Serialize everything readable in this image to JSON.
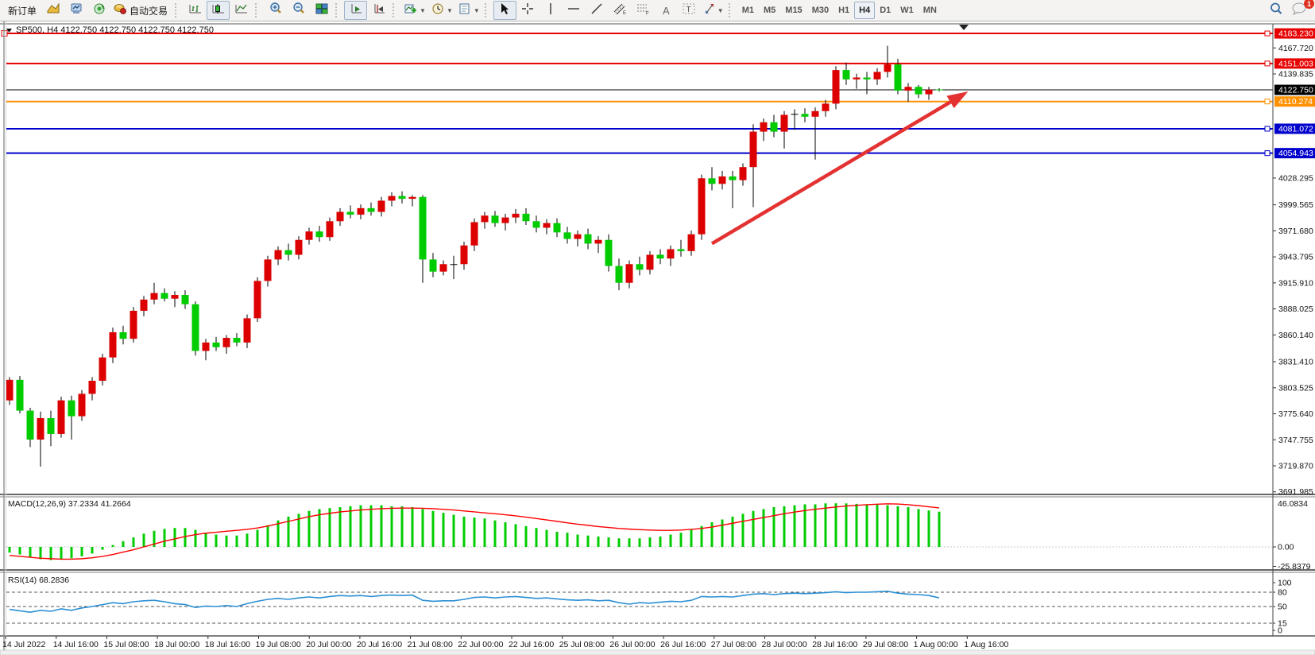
{
  "toolbar": {
    "new_order_label": "新订单",
    "autotrade_label": "自动交易",
    "text_tool_label": "A",
    "label_tool_label": "T",
    "timeframes": [
      "M1",
      "M5",
      "M15",
      "M30",
      "H1",
      "H4",
      "D1",
      "W1",
      "MN"
    ],
    "active_timeframe": "H4",
    "notification_count": "1"
  },
  "chart_data": {
    "type": "candlestick",
    "symbol": "SP500",
    "timeframe": "H4",
    "title": "SP500, H4 4122.750 4122.750 4122.750 4122.750",
    "current_price": "4122.750",
    "price_axis": {
      "visible_min": 3689.2,
      "visible_max": 4193.5,
      "ticks": [
        "4167.720",
        "4139.835",
        "4028.295",
        "3999.565",
        "3971.680",
        "3943.795",
        "3915.910",
        "3888.025",
        "3860.140",
        "3831.410",
        "3803.525",
        "3775.640",
        "3747.755",
        "3719.870",
        "3691.985"
      ]
    },
    "price_lines": [
      {
        "price": 4183.23,
        "label": "4183.230",
        "color": "#e60000",
        "type": "resistance"
      },
      {
        "price": 4151.003,
        "label": "4151.003",
        "color": "#e60000",
        "type": "resistance"
      },
      {
        "price": 4122.75,
        "label": "4122.750",
        "color": "#000000",
        "type": "current-price"
      },
      {
        "price": 4110.274,
        "label": "4110.274",
        "color": "#ff9000",
        "type": "level"
      },
      {
        "price": 4081.072,
        "label": "4081.072",
        "color": "#0000cc",
        "type": "support"
      },
      {
        "price": 4054.943,
        "label": "4054.943",
        "color": "#0000cc",
        "type": "support"
      }
    ],
    "trend_arrow": {
      "from": {
        "index": 68,
        "price": 3958
      },
      "to": {
        "index": 92.8,
        "price": 4121
      },
      "color": "#e43131"
    },
    "time_labels": [
      "14 Jul 2022",
      "14 Jul 16:00",
      "15 Jul 08:00",
      "18 Jul 00:00",
      "18 Jul 16:00",
      "19 Jul 08:00",
      "20 Jul 00:00",
      "20 Jul 16:00",
      "21 Jul 08:00",
      "22 Jul 00:00",
      "22 Jul 16:00",
      "25 Jul 08:00",
      "26 Jul 00:00",
      "26 Jul 16:00",
      "27 Jul 08:00",
      "28 Jul 00:00",
      "28 Jul 16:00",
      "29 Jul 08:00",
      "1 Aug 00:00",
      "1 Aug 16:00"
    ],
    "ohlc": [
      [
        3790,
        3815,
        3785,
        3812
      ],
      [
        3812,
        3816,
        3776,
        3779
      ],
      [
        3779,
        3782,
        3740,
        3748
      ],
      [
        3748,
        3778,
        3719,
        3771
      ],
      [
        3771,
        3779,
        3741,
        3754
      ],
      [
        3754,
        3794,
        3750,
        3790
      ],
      [
        3790,
        3795,
        3748,
        3773
      ],
      [
        3773,
        3801,
        3768,
        3797
      ],
      [
        3797,
        3815,
        3790,
        3811
      ],
      [
        3811,
        3840,
        3806,
        3836
      ],
      [
        3836,
        3868,
        3830,
        3863
      ],
      [
        3863,
        3870,
        3850,
        3856
      ],
      [
        3856,
        3890,
        3852,
        3886
      ],
      [
        3886,
        3902,
        3880,
        3898
      ],
      [
        3898,
        3916,
        3893,
        3905
      ],
      [
        3905,
        3910,
        3896,
        3899
      ],
      [
        3899,
        3907,
        3890,
        3903
      ],
      [
        3903,
        3908,
        3888,
        3893
      ],
      [
        3893,
        3896,
        3838,
        3843
      ],
      [
        3843,
        3856,
        3833,
        3852
      ],
      [
        3852,
        3858,
        3843,
        3847
      ],
      [
        3847,
        3860,
        3840,
        3857
      ],
      [
        3857,
        3862,
        3848,
        3852
      ],
      [
        3852,
        3882,
        3846,
        3878
      ],
      [
        3878,
        3922,
        3874,
        3918
      ],
      [
        3918,
        3945,
        3912,
        3941
      ],
      [
        3941,
        3955,
        3935,
        3951
      ],
      [
        3951,
        3958,
        3940,
        3946
      ],
      [
        3946,
        3966,
        3941,
        3962
      ],
      [
        3962,
        3975,
        3957,
        3971
      ],
      [
        3971,
        3977,
        3960,
        3965
      ],
      [
        3965,
        3986,
        3961,
        3982
      ],
      [
        3982,
        3996,
        3977,
        3992
      ],
      [
        3992,
        3999,
        3985,
        3989
      ],
      [
        3989,
        4000,
        3984,
        3996
      ],
      [
        3996,
        4002,
        3988,
        3992
      ],
      [
        3992,
        4008,
        3987,
        4004
      ],
      [
        4004,
        4013,
        3998,
        4009
      ],
      [
        4009,
        4014,
        4001,
        4006
      ],
      [
        4006,
        4010,
        3998,
        4008
      ],
      [
        4008,
        4010,
        3916,
        3941
      ],
      [
        3941,
        3948,
        3922,
        3928
      ],
      [
        3928,
        3940,
        3924,
        3936
      ],
      [
        3936,
        3945,
        3920,
        3936
      ],
      [
        3936,
        3960,
        3930,
        3956
      ],
      [
        3956,
        3985,
        3950,
        3981
      ],
      [
        3981,
        3992,
        3974,
        3988
      ],
      [
        3988,
        3993,
        3976,
        3980
      ],
      [
        3980,
        3990,
        3972,
        3986
      ],
      [
        3986,
        3995,
        3980,
        3990
      ],
      [
        3990,
        3996,
        3978,
        3982
      ],
      [
        3982,
        3988,
        3970,
        3975
      ],
      [
        3975,
        3984,
        3968,
        3980
      ],
      [
        3980,
        3985,
        3965,
        3970
      ],
      [
        3970,
        3976,
        3958,
        3963
      ],
      [
        3963,
        3972,
        3955,
        3968
      ],
      [
        3968,
        3974,
        3952,
        3958
      ],
      [
        3958,
        3966,
        3948,
        3962
      ],
      [
        3962,
        3968,
        3928,
        3934
      ],
      [
        3934,
        3942,
        3908,
        3916
      ],
      [
        3916,
        3940,
        3910,
        3936
      ],
      [
        3936,
        3944,
        3924,
        3930
      ],
      [
        3930,
        3950,
        3925,
        3946
      ],
      [
        3946,
        3952,
        3936,
        3942
      ],
      [
        3942,
        3956,
        3934,
        3952
      ],
      [
        3952,
        3962,
        3944,
        3950
      ],
      [
        3950,
        3972,
        3945,
        3968
      ],
      [
        3968,
        4032,
        3962,
        4028
      ],
      [
        4028,
        4040,
        4015,
        4022
      ],
      [
        4022,
        4036,
        4016,
        4030
      ],
      [
        4030,
        4036,
        3996,
        4026
      ],
      [
        4026,
        4044,
        4020,
        4040
      ],
      [
        4040,
        4086,
        3997,
        4078
      ],
      [
        4078,
        4092,
        4068,
        4088
      ],
      [
        4088,
        4096,
        4072,
        4078
      ],
      [
        4078,
        4100,
        4060,
        4096
      ],
      [
        4097,
        4102,
        4080,
        4097
      ],
      [
        4097,
        4103,
        4088,
        4094
      ],
      [
        4094,
        4104,
        4048,
        4100
      ],
      [
        4100,
        4112,
        4094,
        4108
      ],
      [
        4108,
        4148,
        4102,
        4144
      ],
      [
        4144,
        4152,
        4128,
        4134
      ],
      [
        4134,
        4140,
        4124,
        4136
      ],
      [
        4136,
        4142,
        4118,
        4134
      ],
      [
        4134,
        4146,
        4128,
        4142
      ],
      [
        4142,
        4170,
        4136,
        4150
      ],
      [
        4150,
        4156,
        4118,
        4122
      ],
      [
        4122,
        4130,
        4110,
        4126
      ],
      [
        4126,
        4128,
        4114,
        4118
      ],
      [
        4118,
        4126,
        4112,
        4123
      ],
      [
        4123.2,
        4124.5,
        4121,
        4122.75
      ]
    ],
    "macd": {
      "display": "MACD(12,26,9) 37.2334 41.2664",
      "params": "12,26,9",
      "value": 37.2334,
      "signal_value": 41.2664,
      "scale": {
        "max": "46.0834",
        "zero": "0.00",
        "min": "-25.8379"
      },
      "histogram": [
        -6,
        -8,
        -11,
        -13,
        -14,
        -13,
        -12,
        -10,
        -7,
        -3,
        2,
        6,
        10,
        14,
        17,
        19,
        20,
        20,
        18,
        15,
        13,
        12,
        12,
        14,
        18,
        23,
        28,
        32,
        35,
        38,
        40,
        41,
        42,
        43,
        44,
        44,
        44,
        43,
        43,
        42,
        40,
        38,
        36,
        34,
        32,
        31,
        30,
        28,
        26,
        24,
        22,
        20,
        18,
        16,
        15,
        13,
        12,
        11,
        10,
        9,
        9,
        9,
        10,
        11,
        13,
        15,
        18,
        22,
        26,
        29,
        32,
        35,
        38,
        40,
        42,
        43,
        44,
        45,
        45,
        46,
        46.08,
        46,
        45.5,
        45,
        44.5,
        44,
        43,
        42,
        40,
        38.5,
        37.23
      ],
      "signal": [
        -9,
        -10,
        -11,
        -12,
        -12.5,
        -13,
        -13,
        -12.5,
        -11.5,
        -10,
        -8,
        -5.5,
        -3,
        0,
        3,
        6,
        8.5,
        11,
        13,
        14.5,
        15.5,
        16.5,
        17.5,
        18.5,
        20,
        22,
        24.5,
        27,
        29.5,
        32,
        34,
        35.5,
        37,
        38,
        39,
        39.8,
        40.4,
        40.8,
        41,
        41,
        40.8,
        40.4,
        39.8,
        39,
        38,
        37,
        36,
        35,
        34,
        32.8,
        31.5,
        30,
        28.5,
        27,
        25.5,
        24,
        22.8,
        21.5,
        20.5,
        19.5,
        18.8,
        18.2,
        17.8,
        17.5,
        17.5,
        17.8,
        18.5,
        19.5,
        21,
        23,
        25,
        27,
        29,
        31,
        33,
        35,
        36.8,
        38.4,
        39.8,
        41,
        42.2,
        43.2,
        44,
        44.6,
        45.1,
        45.5,
        45.3,
        44.6,
        43.6,
        42.4,
        41.27
      ]
    },
    "rsi": {
      "display": "RSI(14) 68.2836",
      "period": 14,
      "value": 68.2836,
      "levels": [
        80,
        50,
        15
      ],
      "scale_labels": [
        "100",
        "80",
        "50",
        "15",
        "0"
      ],
      "series": [
        44,
        41,
        38,
        42,
        40,
        45,
        42,
        47,
        50,
        54,
        58,
        56,
        60,
        62,
        63,
        60,
        56,
        54,
        48,
        51,
        50,
        52,
        50,
        56,
        61,
        65,
        67,
        65,
        68,
        70,
        68,
        71,
        73,
        72,
        73,
        71,
        73,
        74,
        73,
        74,
        63,
        61,
        62,
        62,
        65,
        69,
        70,
        68,
        70,
        71,
        69,
        67,
        68,
        66,
        64,
        63,
        64,
        62,
        63,
        58,
        55,
        58,
        57,
        59,
        61,
        60,
        63,
        71,
        70,
        71,
        70,
        73,
        76,
        77,
        75,
        77,
        78,
        77,
        78,
        79,
        81,
        79,
        80,
        80,
        81,
        82,
        78,
        76,
        75,
        73,
        68.28
      ],
      "line_color": "#2b8fd4"
    },
    "colors": {
      "bull_candle": "#dd0000",
      "bear_candle": "#00cc00",
      "wick": "#000000",
      "macd_histogram": "#00cc00",
      "macd_signal": "#ff0000",
      "rsi_line": "#2b8fd4",
      "arrow": "#e43131",
      "background": "#ffffff"
    }
  }
}
